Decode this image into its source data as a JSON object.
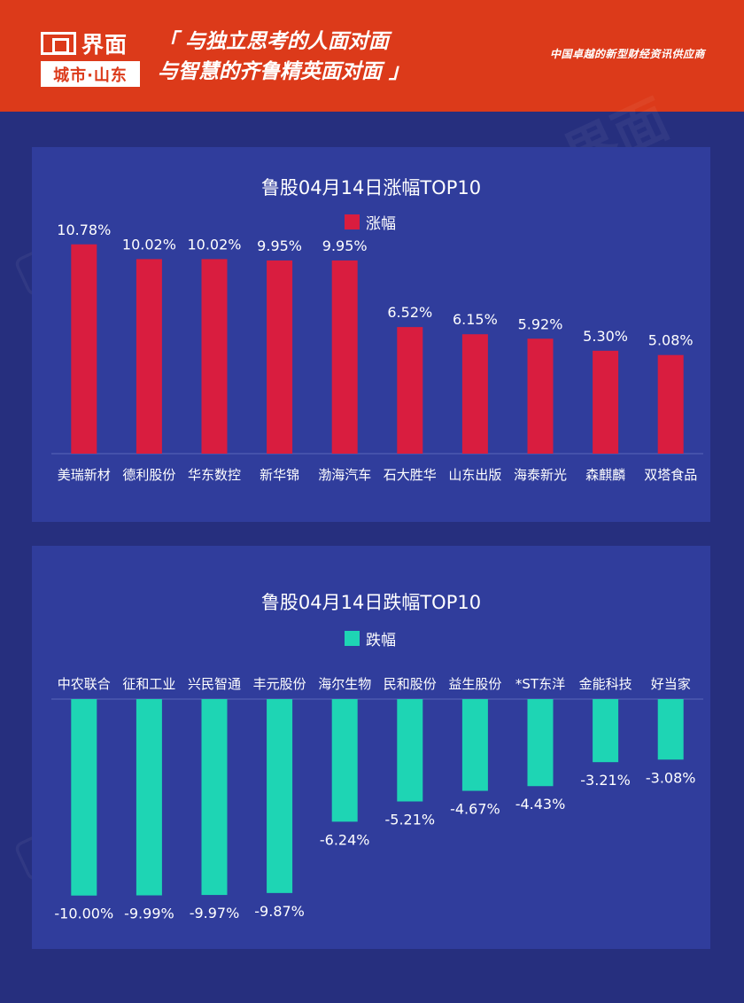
{
  "header": {
    "logo_name": "界面",
    "logo_city": "城市·山东",
    "slogan_line1": "「 与独立思考的人面对面",
    "slogan_line2": "与智慧的齐鲁精英面对面 」",
    "tagline": "中国卓越的新型财经资讯供应商"
  },
  "colors": {
    "header": "#dc3a1a",
    "background": "#262f7e",
    "panel": "#303d9c",
    "gain": "#d91d3f",
    "loss": "#1ed5b4"
  },
  "chart_data": [
    {
      "type": "bar",
      "title": "鲁股04月14日涨幅TOP10",
      "series": [
        {
          "name": "涨幅",
          "values": [
            10.78,
            10.02,
            10.02,
            9.95,
            9.95,
            6.52,
            6.15,
            5.92,
            5.3,
            5.08
          ]
        }
      ],
      "categories": [
        "美瑞新材",
        "德利股份",
        "华东数控",
        "新华锦",
        "渤海汽车",
        "石大胜华",
        "山东出版",
        "海泰新光",
        "森麒麟",
        "双塔食品"
      ],
      "labels": [
        "10.78%",
        "10.02%",
        "10.02%",
        "9.95%",
        "9.95%",
        "6.52%",
        "6.15%",
        "5.92%",
        "5.30%",
        "5.08%"
      ],
      "ylim": [
        0,
        11.5
      ],
      "legend": "top-center",
      "grid": false
    },
    {
      "type": "bar",
      "title": "鲁股04月14日跌幅TOP10",
      "series": [
        {
          "name": "跌幅",
          "values": [
            -10.0,
            -9.99,
            -9.97,
            -9.87,
            -6.24,
            -5.21,
            -4.67,
            -4.43,
            -3.21,
            -3.08
          ]
        }
      ],
      "categories": [
        "中农联合",
        "征和工业",
        "兴民智通",
        "丰元股份",
        "海尔生物",
        "民和股份",
        "益生股份",
        "*ST东洋",
        "金能科技",
        "好当家"
      ],
      "labels": [
        "-10.00%",
        "-9.99%",
        "-9.97%",
        "-9.87%",
        "-6.24%",
        "-5.21%",
        "-4.67%",
        "-4.43%",
        "-3.21%",
        "-3.08%"
      ],
      "ylim": [
        -11.5,
        0
      ],
      "legend": "top-center",
      "grid": false
    }
  ]
}
